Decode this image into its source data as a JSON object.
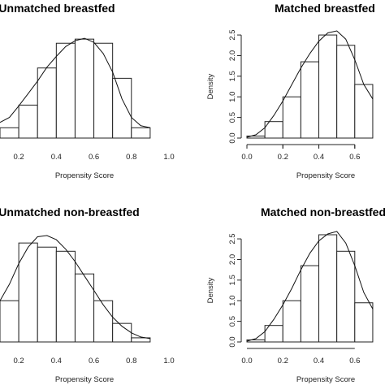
{
  "chart_data": [
    {
      "type": "bar",
      "title": "Unmatched breastfed",
      "xlabel": "Propensity Score",
      "ylabel": "",
      "x_ticks": [
        "0.2",
        "0.4",
        "0.6",
        "0.8",
        "1.0"
      ],
      "y_ticks": [],
      "xlim": [
        0.1,
        1.0
      ],
      "ylim": [
        0,
        2.6
      ],
      "bins": [
        [
          0.1,
          0.2
        ],
        [
          0.2,
          0.3
        ],
        [
          0.3,
          0.4
        ],
        [
          0.4,
          0.5
        ],
        [
          0.5,
          0.6
        ],
        [
          0.6,
          0.7
        ],
        [
          0.7,
          0.8
        ],
        [
          0.8,
          0.9
        ]
      ],
      "values": [
        0.25,
        0.8,
        1.7,
        2.3,
        2.4,
        2.3,
        1.45,
        0.25
      ],
      "density_curve": [
        [
          0.1,
          0.38
        ],
        [
          0.15,
          0.5
        ],
        [
          0.2,
          0.78
        ],
        [
          0.25,
          1.08
        ],
        [
          0.3,
          1.38
        ],
        [
          0.35,
          1.72
        ],
        [
          0.4,
          1.98
        ],
        [
          0.45,
          2.22
        ],
        [
          0.5,
          2.36
        ],
        [
          0.55,
          2.42
        ],
        [
          0.6,
          2.32
        ],
        [
          0.65,
          2.05
        ],
        [
          0.7,
          1.6
        ],
        [
          0.75,
          0.95
        ],
        [
          0.8,
          0.5
        ],
        [
          0.85,
          0.3
        ],
        [
          0.9,
          0.25
        ]
      ]
    },
    {
      "type": "bar",
      "title": "Matched breastfed",
      "xlabel": "Propensity Score",
      "ylabel": "Density",
      "x_ticks": [
        "0.0",
        "0.2",
        "0.4",
        "0.6"
      ],
      "y_ticks": [
        "0.0",
        "0.5",
        "1.0",
        "1.5",
        "2.0",
        "2.5"
      ],
      "xlim": [
        0.0,
        0.75
      ],
      "ylim": [
        0,
        2.6
      ],
      "bins": [
        [
          0.0,
          0.1
        ],
        [
          0.1,
          0.2
        ],
        [
          0.2,
          0.3
        ],
        [
          0.3,
          0.4
        ],
        [
          0.4,
          0.5
        ],
        [
          0.5,
          0.6
        ],
        [
          0.6,
          0.7
        ]
      ],
      "values": [
        0.05,
        0.4,
        1.0,
        1.85,
        2.5,
        2.25,
        1.3
      ],
      "density_curve": [
        [
          0.0,
          0.02
        ],
        [
          0.05,
          0.08
        ],
        [
          0.1,
          0.25
        ],
        [
          0.15,
          0.55
        ],
        [
          0.2,
          0.9
        ],
        [
          0.25,
          1.3
        ],
        [
          0.3,
          1.7
        ],
        [
          0.35,
          2.05
        ],
        [
          0.4,
          2.35
        ],
        [
          0.45,
          2.55
        ],
        [
          0.5,
          2.6
        ],
        [
          0.55,
          2.4
        ],
        [
          0.6,
          1.9
        ],
        [
          0.65,
          1.3
        ],
        [
          0.7,
          0.95
        ]
      ]
    },
    {
      "type": "bar",
      "title": "Unmatched non-breastfed",
      "xlabel": "Propensity Score",
      "ylabel": "",
      "x_ticks": [
        "0.2",
        "0.4",
        "0.6",
        "0.8",
        "1.0"
      ],
      "y_ticks": [],
      "xlim": [
        0.1,
        1.0
      ],
      "ylim": [
        0,
        2.6
      ],
      "bins": [
        [
          0.1,
          0.2
        ],
        [
          0.2,
          0.3
        ],
        [
          0.3,
          0.4
        ],
        [
          0.4,
          0.5
        ],
        [
          0.5,
          0.6
        ],
        [
          0.6,
          0.7
        ],
        [
          0.7,
          0.8
        ],
        [
          0.8,
          0.9
        ]
      ],
      "values": [
        1.0,
        2.4,
        2.3,
        2.2,
        1.65,
        1.0,
        0.45,
        0.1
      ],
      "density_curve": [
        [
          0.1,
          1.0
        ],
        [
          0.15,
          1.4
        ],
        [
          0.2,
          1.9
        ],
        [
          0.25,
          2.3
        ],
        [
          0.3,
          2.55
        ],
        [
          0.35,
          2.58
        ],
        [
          0.4,
          2.48
        ],
        [
          0.45,
          2.25
        ],
        [
          0.5,
          1.95
        ],
        [
          0.55,
          1.6
        ],
        [
          0.6,
          1.25
        ],
        [
          0.65,
          0.9
        ],
        [
          0.7,
          0.6
        ],
        [
          0.75,
          0.38
        ],
        [
          0.8,
          0.22
        ],
        [
          0.85,
          0.12
        ],
        [
          0.9,
          0.08
        ]
      ]
    },
    {
      "type": "bar",
      "title": "Matched non-breastfed",
      "xlabel": "Propensity Score",
      "ylabel": "Density",
      "x_ticks": [
        "0.0",
        "0.2",
        "0.4",
        "0.6"
      ],
      "y_ticks": [
        "0.0",
        "0.5",
        "1.0",
        "1.5",
        "2.0",
        "2.5"
      ],
      "xlim": [
        0.0,
        0.75
      ],
      "ylim": [
        0,
        2.6
      ],
      "bins": [
        [
          0.0,
          0.1
        ],
        [
          0.1,
          0.2
        ],
        [
          0.2,
          0.3
        ],
        [
          0.3,
          0.4
        ],
        [
          0.4,
          0.5
        ],
        [
          0.5,
          0.6
        ],
        [
          0.6,
          0.7
        ]
      ],
      "values": [
        0.05,
        0.4,
        1.0,
        1.85,
        2.6,
        2.2,
        0.95
      ],
      "density_curve": [
        [
          0.0,
          0.02
        ],
        [
          0.05,
          0.08
        ],
        [
          0.1,
          0.25
        ],
        [
          0.15,
          0.55
        ],
        [
          0.2,
          0.9
        ],
        [
          0.25,
          1.3
        ],
        [
          0.3,
          1.75
        ],
        [
          0.35,
          2.15
        ],
        [
          0.4,
          2.45
        ],
        [
          0.45,
          2.62
        ],
        [
          0.5,
          2.68
        ],
        [
          0.55,
          2.4
        ],
        [
          0.6,
          1.85
        ],
        [
          0.65,
          1.2
        ],
        [
          0.7,
          0.8
        ]
      ]
    }
  ]
}
